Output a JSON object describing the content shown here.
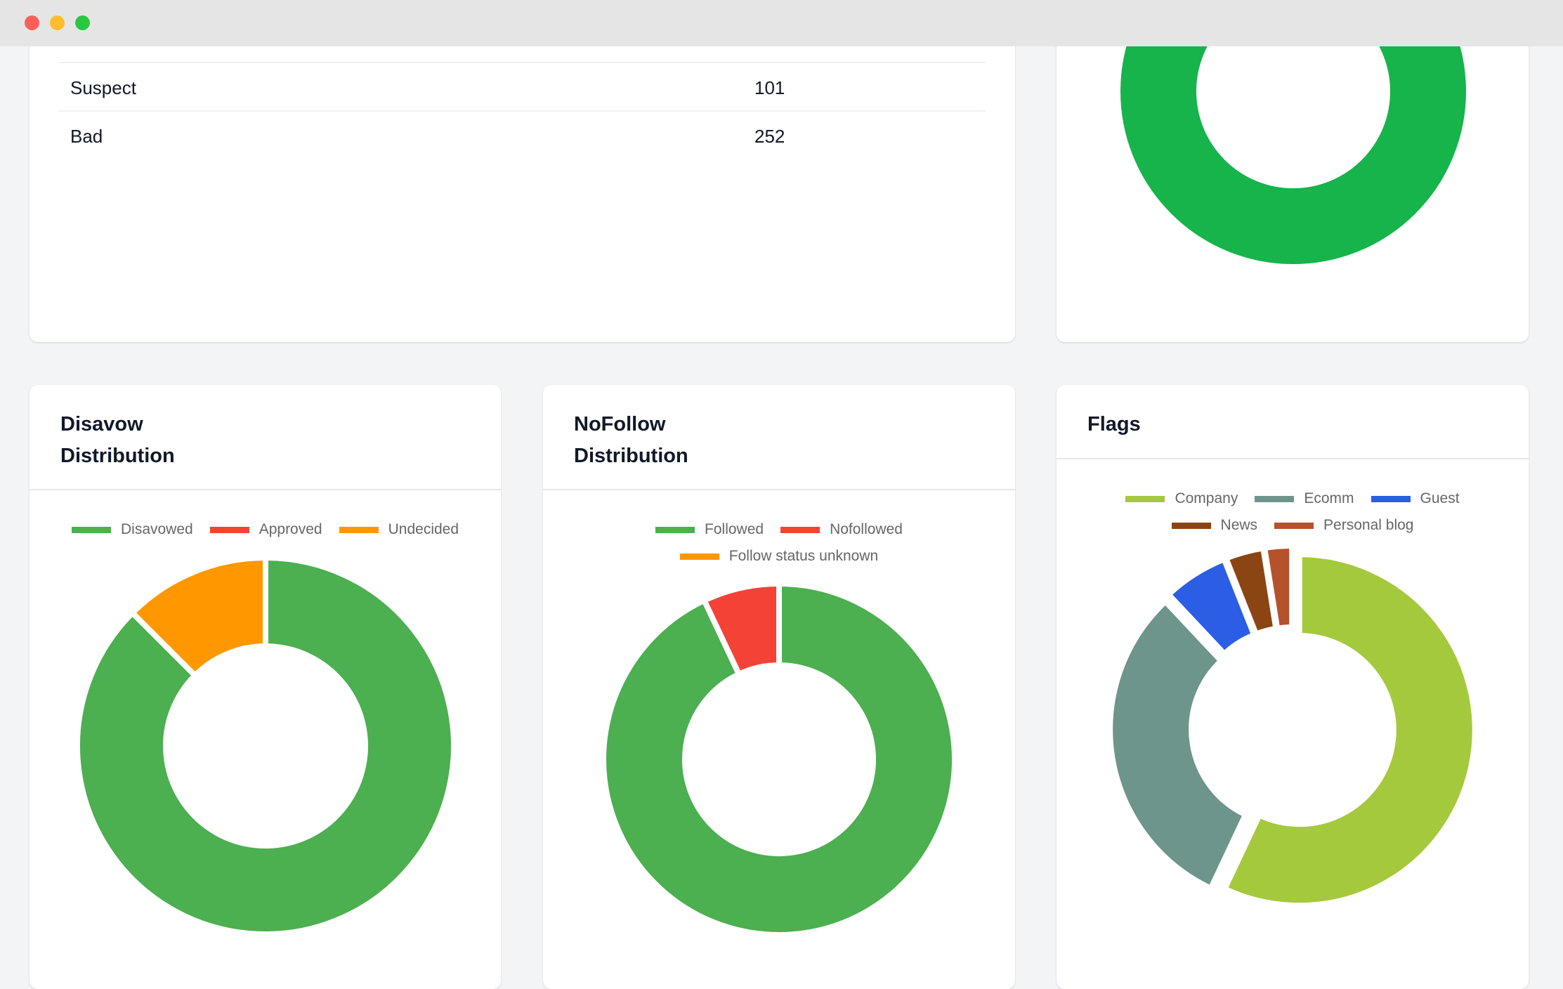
{
  "window": {
    "traffic_lights": [
      "#ff5f57",
      "#febc2e",
      "#28c840"
    ]
  },
  "quality_table": {
    "rows": [
      {
        "label": "Suspect",
        "value": "101"
      },
      {
        "label": "Bad",
        "value": "252"
      }
    ]
  },
  "top_right_chart": {
    "chart_data": {
      "type": "pie",
      "variant": "donut",
      "categories": [
        ""
      ],
      "values": [
        1
      ],
      "colors": [
        "#16b44a"
      ]
    }
  },
  "disavow_card": {
    "title_line1": "Disavow",
    "title_line2": "Distribution",
    "chart_data": {
      "type": "pie",
      "variant": "donut",
      "title": "Disavow Distribution",
      "categories": [
        "Disavowed",
        "Approved",
        "Undecided"
      ],
      "values": [
        87.5,
        0,
        12.5
      ],
      "colors": [
        "#4caf50",
        "#f44336",
        "#ff9800"
      ],
      "legend": "top"
    }
  },
  "nofollow_card": {
    "title_line1": "NoFollow",
    "title_line2": "Distribution",
    "chart_data": {
      "type": "pie",
      "variant": "donut",
      "title": "NoFollow Distribution",
      "categories": [
        "Followed",
        "Nofollowed",
        "Follow status unknown"
      ],
      "values": [
        93,
        7,
        0
      ],
      "colors": [
        "#4caf50",
        "#f44336",
        "#ff9800"
      ],
      "legend": "top"
    }
  },
  "flags_card": {
    "title": "Flags",
    "chart_data": {
      "type": "pie",
      "variant": "donut",
      "title": "Flags",
      "categories": [
        "Company",
        "Ecomm",
        "Guest",
        "News",
        "Personal blog"
      ],
      "values": [
        57,
        31,
        6,
        3.5,
        2.5
      ],
      "colors": [
        "#a5c93c",
        "#6e958b",
        "#2c5de5",
        "#8b4513",
        "#b5522b"
      ],
      "legend": "top"
    }
  }
}
